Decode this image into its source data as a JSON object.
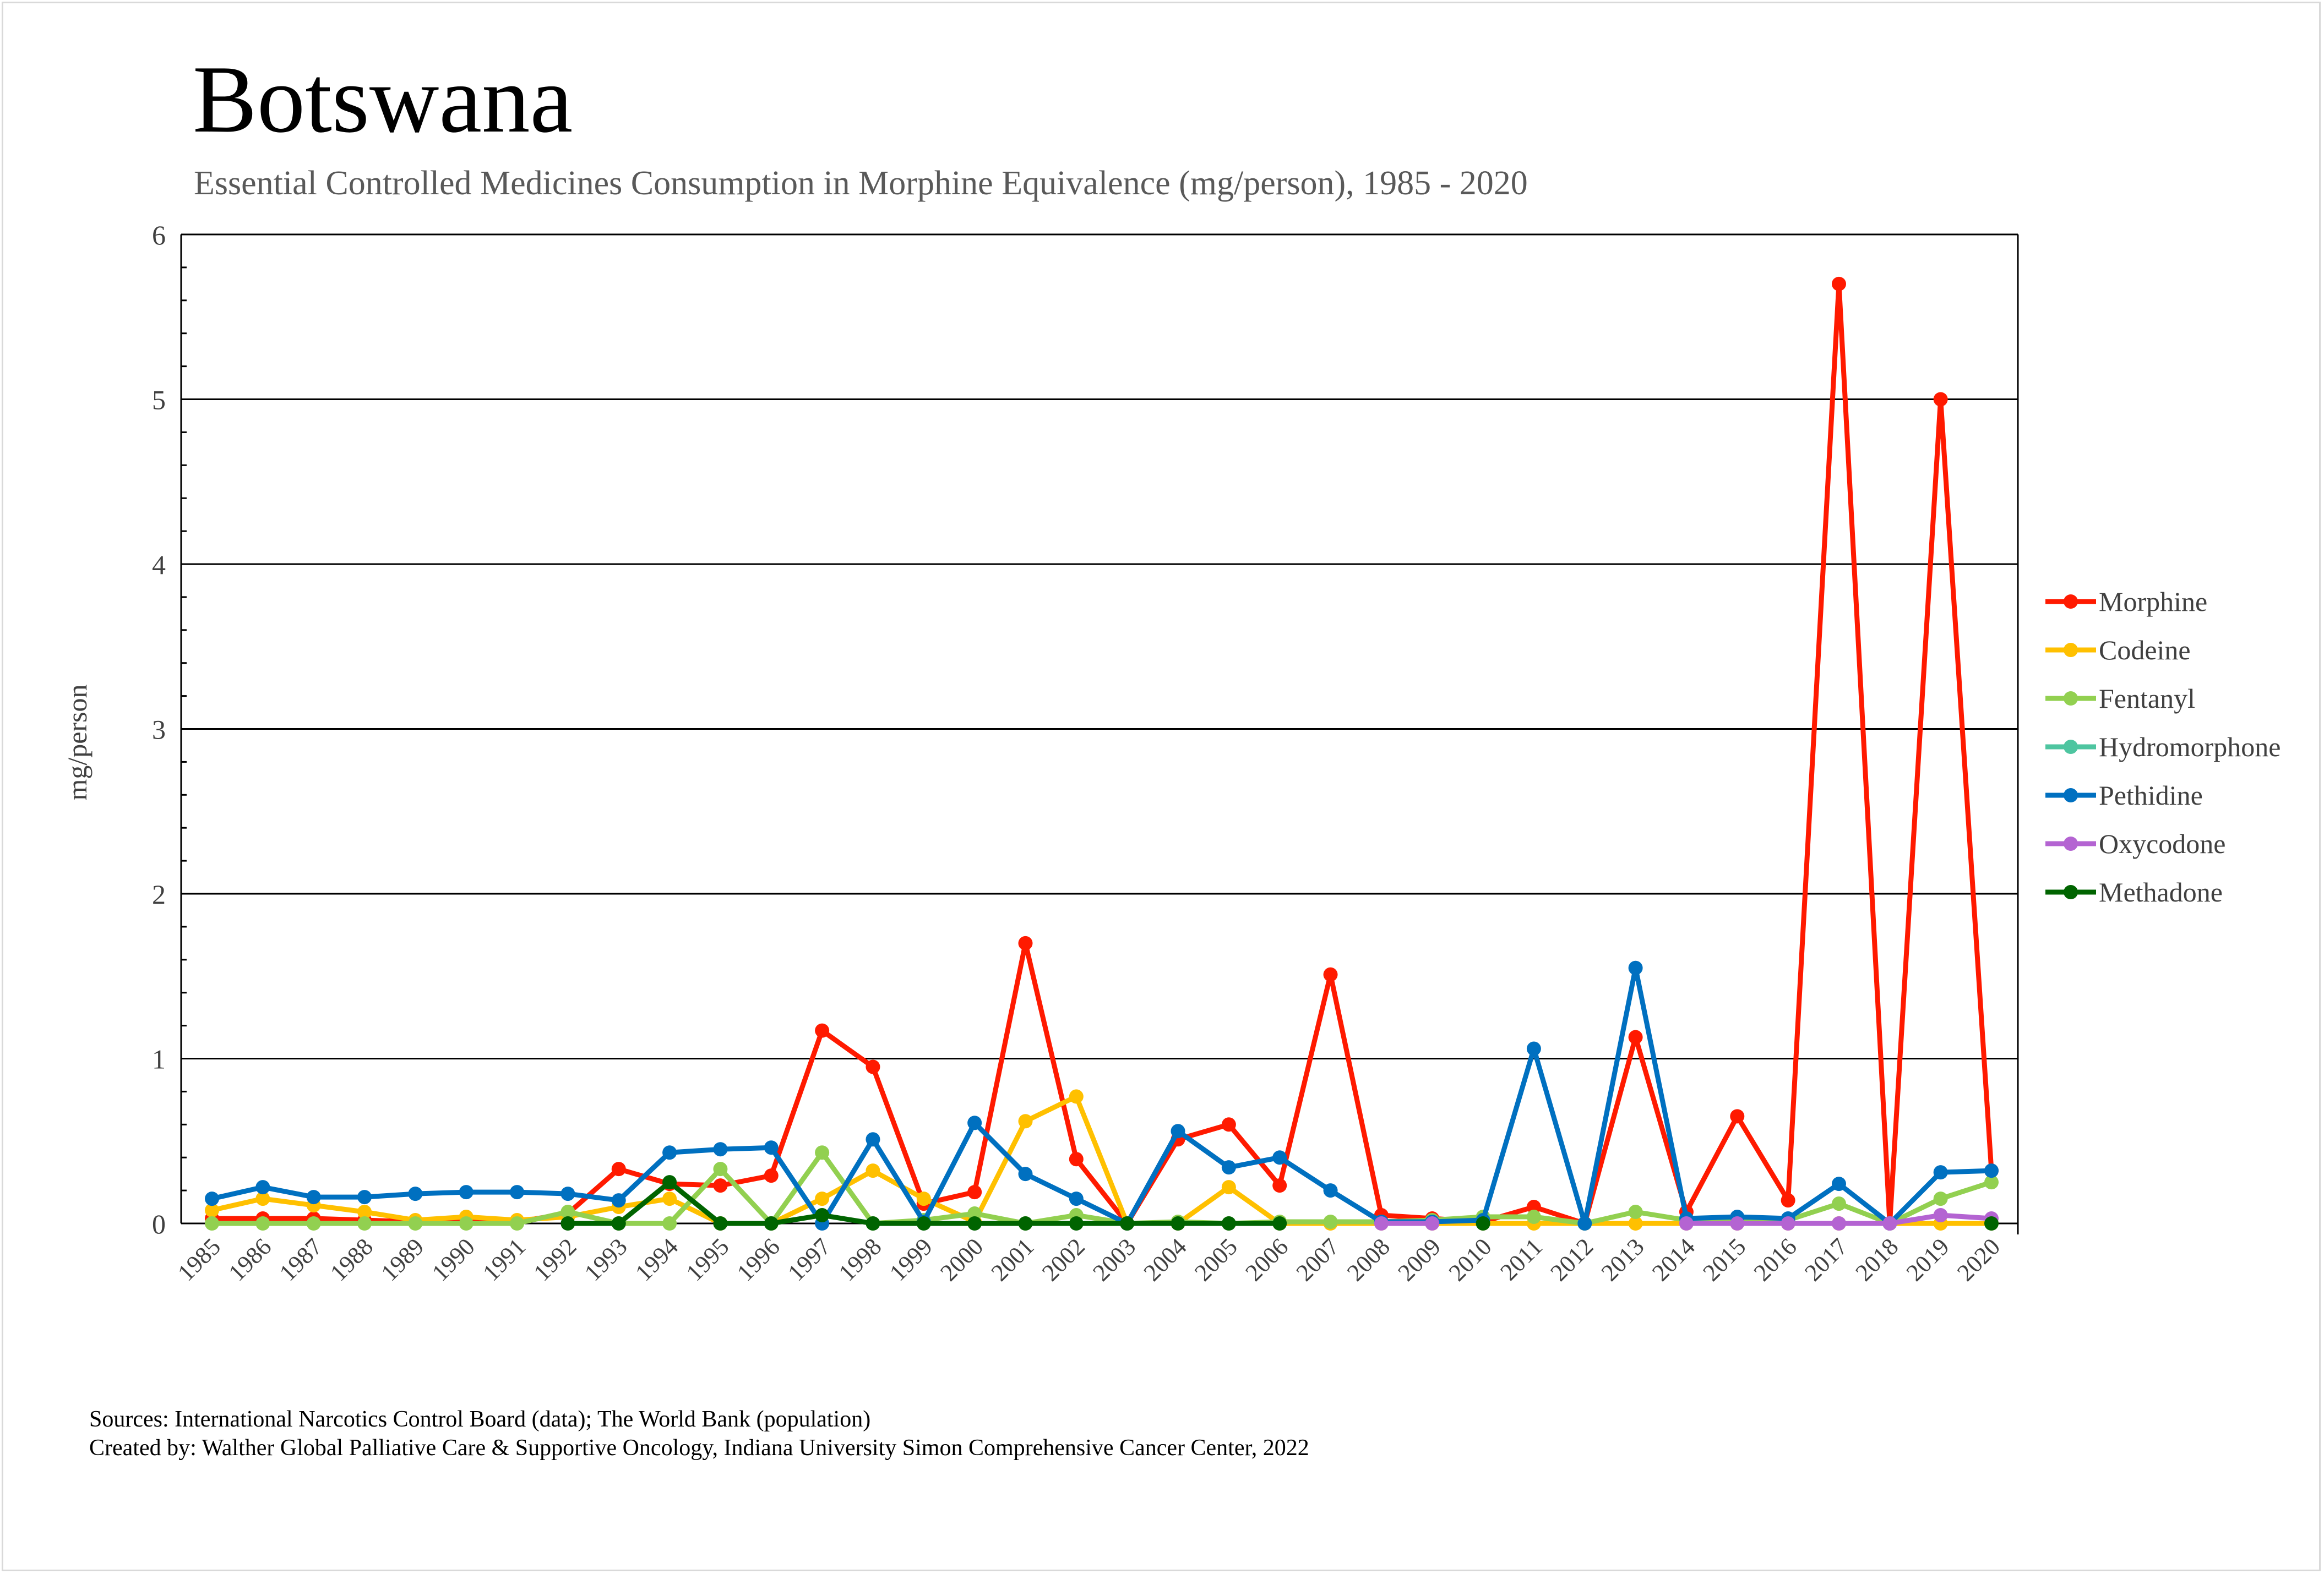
{
  "chart_data": {
    "type": "line",
    "title": "Botswana",
    "subtitle": "Essential Controlled Medicines Consumption in Morphine Equivalence (mg/person), 1985 - 2020",
    "xlabel": "",
    "ylabel": "mg/person",
    "ylim": [
      0,
      6
    ],
    "yticks": [
      0,
      1,
      2,
      3,
      4,
      5,
      6
    ],
    "grid": true,
    "legend_position": "right",
    "x": [
      "1985",
      "1986",
      "1987",
      "1988",
      "1989",
      "1990",
      "1991",
      "1992",
      "1993",
      "1994",
      "1995",
      "1996",
      "1997",
      "1998",
      "1999",
      "2000",
      "2001",
      "2002",
      "2003",
      "2004",
      "2005",
      "2006",
      "2007",
      "2008",
      "2009",
      "2010",
      "2011",
      "2012",
      "2013",
      "2014",
      "2015",
      "2016",
      "2017",
      "2018",
      "2019",
      "2020"
    ],
    "series": [
      {
        "name": "Morphine",
        "color": "#ff1a00",
        "values": [
          0.03,
          0.03,
          0.03,
          0.02,
          0.01,
          0.01,
          0.01,
          0.06,
          0.33,
          0.24,
          0.23,
          0.29,
          1.17,
          0.95,
          0.12,
          0.19,
          1.7,
          0.39,
          0,
          0.51,
          0.6,
          0.23,
          1.51,
          0.05,
          0.03,
          0.01,
          0.1,
          0,
          1.13,
          0.07,
          0.65,
          0.14,
          5.7,
          0,
          5.0,
          0.32
        ]
      },
      {
        "name": "Codeine",
        "color": "#ffc000",
        "values": [
          0.08,
          0.15,
          0.11,
          0.07,
          0.02,
          0.04,
          0.02,
          0.04,
          0.1,
          0.15,
          0,
          0,
          0.15,
          0.32,
          0.15,
          0.01,
          0.62,
          0.77,
          0,
          0,
          0.22,
          0,
          0,
          0,
          0,
          0,
          0,
          0,
          0,
          0,
          0,
          0,
          0,
          0,
          0,
          0
        ]
      },
      {
        "name": "Fentanyl",
        "color": "#92d050",
        "values": [
          0,
          0,
          0,
          0,
          0,
          0,
          0,
          0.07,
          0,
          0,
          0.33,
          0,
          0.43,
          0,
          0.02,
          0.06,
          0,
          0.05,
          0,
          0.01,
          0,
          0.01,
          0.01,
          0.01,
          0.02,
          0.04,
          0.04,
          0,
          0.07,
          0.02,
          0.02,
          0.02,
          0.12,
          0,
          0.15,
          0.25
        ]
      },
      {
        "name": "Hydromorphone",
        "color": "#4ec5a0",
        "values": [
          null,
          null,
          null,
          null,
          null,
          null,
          null,
          null,
          null,
          null,
          null,
          null,
          null,
          null,
          null,
          null,
          null,
          null,
          null,
          null,
          null,
          null,
          null,
          null,
          null,
          null,
          null,
          null,
          null,
          null,
          null,
          null,
          null,
          null,
          null,
          null
        ]
      },
      {
        "name": "Pethidine",
        "color": "#0070c0",
        "values": [
          0.15,
          0.22,
          0.16,
          0.16,
          0.18,
          0.19,
          0.19,
          0.18,
          0.14,
          0.43,
          0.45,
          0.46,
          0,
          0.51,
          0.01,
          0.61,
          0.3,
          0.15,
          0,
          0.56,
          0.34,
          0.4,
          0.2,
          0.01,
          0.01,
          0.02,
          1.06,
          0,
          1.55,
          0.03,
          0.04,
          0.03,
          0.24,
          0,
          0.31,
          0.32
        ]
      },
      {
        "name": "Oxycodone",
        "color": "#b464d2",
        "values": [
          null,
          null,
          null,
          null,
          null,
          null,
          null,
          null,
          null,
          null,
          null,
          null,
          null,
          null,
          null,
          null,
          null,
          null,
          null,
          null,
          null,
          null,
          null,
          0,
          0,
          null,
          null,
          null,
          null,
          0,
          0,
          0,
          0,
          0,
          0.05,
          0.03
        ]
      },
      {
        "name": "Methadone",
        "color": "#006400",
        "values": [
          null,
          null,
          null,
          null,
          null,
          null,
          null,
          0,
          0,
          0.25,
          0,
          0,
          0.05,
          0,
          0,
          0,
          0,
          0,
          0,
          0,
          0,
          0,
          null,
          null,
          null,
          0,
          null,
          null,
          null,
          null,
          null,
          null,
          null,
          null,
          null,
          0
        ]
      }
    ]
  },
  "footer": {
    "sources": "Sources: International Narcotics Control Board (data); The World Bank (population)",
    "created_by": "Created by: Walther Global Palliative Care & Supportive Oncology, Indiana University Simon Comprehensive Cancer Center, 2022"
  }
}
